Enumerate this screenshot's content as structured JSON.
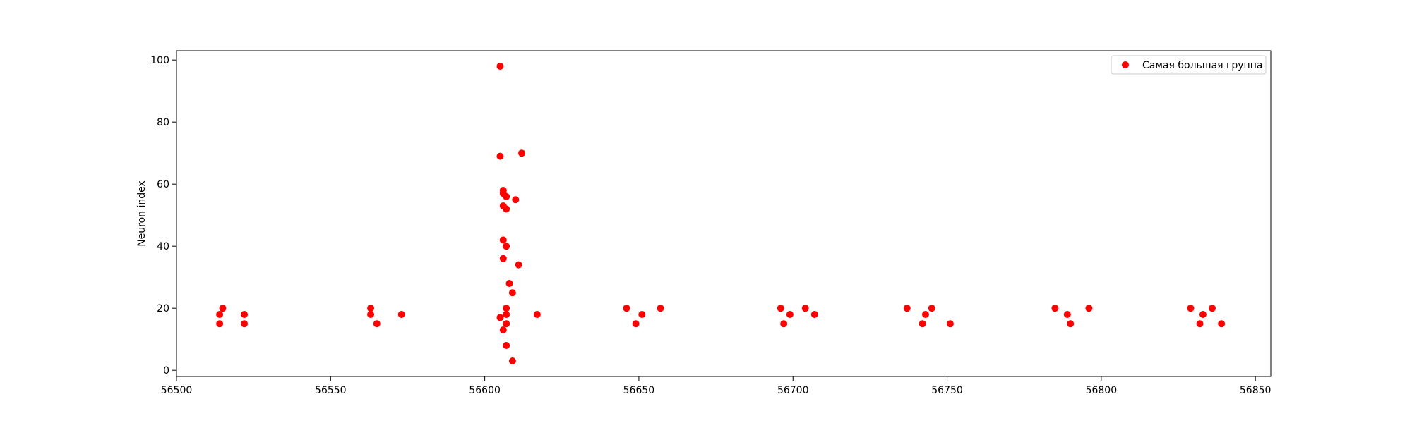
{
  "chart_data": {
    "type": "scatter",
    "title": "",
    "xlabel": "",
    "ylabel": "Neuron index",
    "xlim": [
      56500,
      56855
    ],
    "ylim": [
      -2,
      103
    ],
    "xticks": [
      56500,
      56550,
      56600,
      56650,
      56700,
      56750,
      56800,
      56850
    ],
    "yticks": [
      0,
      20,
      40,
      60,
      80,
      100
    ],
    "grid": false,
    "legend": "top-right",
    "series": [
      {
        "name": "Самая большая группа",
        "color": "#ff0000",
        "points": [
          [
            56514,
            18
          ],
          [
            56514,
            15
          ],
          [
            56515,
            20
          ],
          [
            56522,
            18
          ],
          [
            56522,
            15
          ],
          [
            56563,
            18
          ],
          [
            56563,
            20
          ],
          [
            56565,
            15
          ],
          [
            56573,
            18
          ],
          [
            56605,
            98
          ],
          [
            56605,
            69
          ],
          [
            56606,
            58
          ],
          [
            56606,
            57
          ],
          [
            56607,
            56
          ],
          [
            56606,
            53
          ],
          [
            56607,
            52
          ],
          [
            56610,
            55
          ],
          [
            56612,
            70
          ],
          [
            56606,
            42
          ],
          [
            56607,
            40
          ],
          [
            56606,
            36
          ],
          [
            56611,
            34
          ],
          [
            56608,
            28
          ],
          [
            56609,
            25
          ],
          [
            56607,
            20
          ],
          [
            56607,
            18
          ],
          [
            56605,
            17
          ],
          [
            56607,
            15
          ],
          [
            56606,
            13
          ],
          [
            56607,
            8
          ],
          [
            56609,
            3
          ],
          [
            56617,
            18
          ],
          [
            56646,
            20
          ],
          [
            56649,
            15
          ],
          [
            56651,
            18
          ],
          [
            56657,
            20
          ],
          [
            56696,
            20
          ],
          [
            56697,
            15
          ],
          [
            56699,
            18
          ],
          [
            56704,
            20
          ],
          [
            56707,
            18
          ],
          [
            56737,
            20
          ],
          [
            56742,
            15
          ],
          [
            56743,
            18
          ],
          [
            56745,
            20
          ],
          [
            56751,
            15
          ],
          [
            56785,
            20
          ],
          [
            56789,
            18
          ],
          [
            56790,
            15
          ],
          [
            56796,
            20
          ],
          [
            56829,
            20
          ],
          [
            56832,
            15
          ],
          [
            56833,
            18
          ],
          [
            56836,
            20
          ],
          [
            56839,
            15
          ]
        ]
      }
    ]
  }
}
